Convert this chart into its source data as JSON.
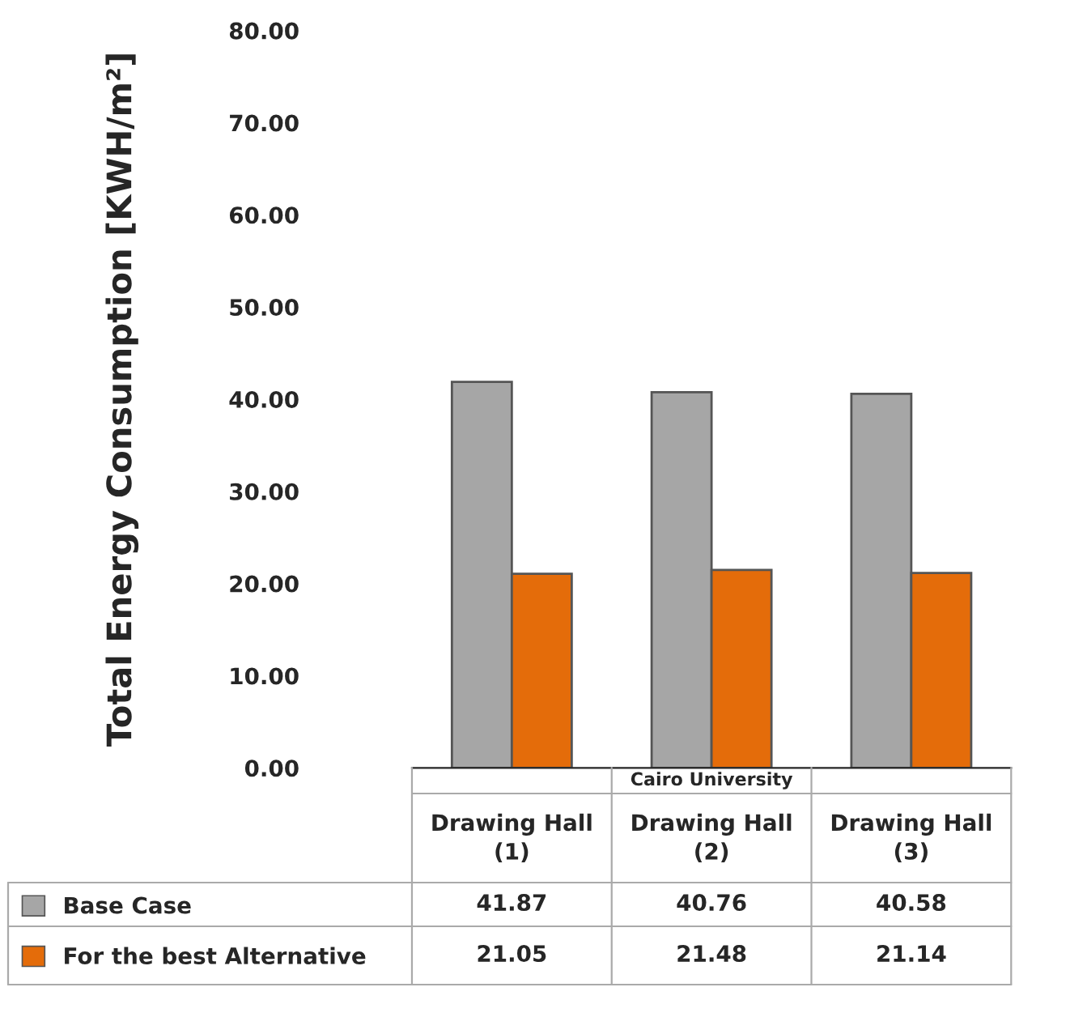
{
  "chart_data": {
    "type": "bar",
    "ylabel": "Total Energy Consumption [KWH/m²]",
    "categories": [
      "Drawing Hall\n(1)",
      "Drawing Hall\n(2)",
      "Drawing Hall\n(3)"
    ],
    "annotations": [
      "Cairo University"
    ],
    "series": [
      {
        "name": "Base Case",
        "color": "#a6a6a6",
        "values": [
          41.87,
          40.76,
          40.58
        ]
      },
      {
        "name": "For the best Alternative",
        "color": "#e46c0a",
        "values": [
          21.05,
          21.48,
          21.14
        ]
      }
    ],
    "ylim": [
      0,
      80
    ],
    "yticks": [
      {
        "value": 0,
        "label": "0.00"
      },
      {
        "value": 10,
        "label": "10.00"
      },
      {
        "value": 20,
        "label": "20.00"
      },
      {
        "value": 30,
        "label": "30.00"
      },
      {
        "value": 40,
        "label": "40.00"
      },
      {
        "value": 50,
        "label": "50.00"
      },
      {
        "value": 60,
        "label": "60.00"
      },
      {
        "value": 70,
        "label": "70.00"
      },
      {
        "value": 80,
        "label": "80.00"
      }
    ],
    "data_labels": true,
    "grid": false,
    "legend": "bottom left"
  }
}
